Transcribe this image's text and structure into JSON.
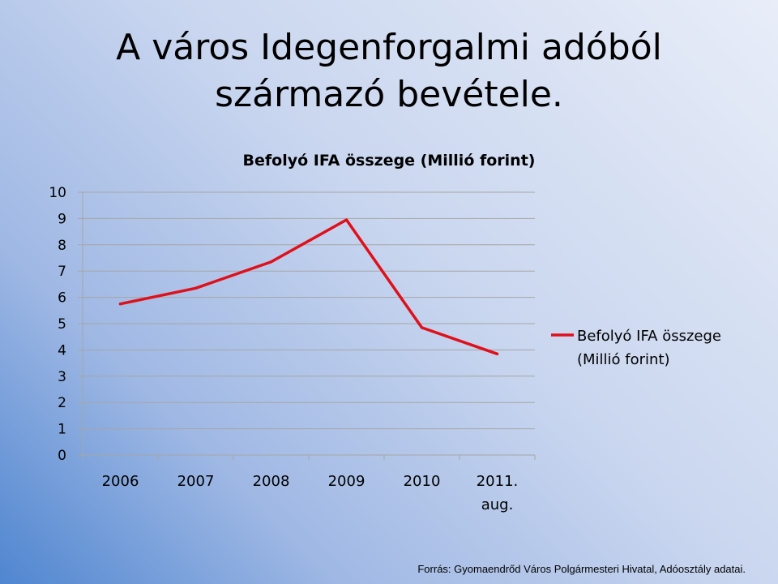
{
  "slide": {
    "title_line1": "A város Idegenforgalmi adóból",
    "title_line2": "származó bevétele.",
    "source": "Forrás: Gyomaendrőd Város Polgármesteri  Hivatal, Adóosztály adatai."
  },
  "chart_data": {
    "type": "line",
    "title": "Befolyó IFA összege (Millió forint)",
    "categories": [
      [
        "2006"
      ],
      [
        "2007"
      ],
      [
        "2008"
      ],
      [
        "2009"
      ],
      [
        "2010"
      ],
      [
        "2011.",
        "aug."
      ]
    ],
    "series": [
      {
        "name": [
          "Befolyó IFA összege",
          "(Millió forint)"
        ],
        "values": [
          5.75,
          6.35,
          7.35,
          8.95,
          4.85,
          3.85
        ],
        "color": "#e0101a"
      }
    ],
    "yticks": [
      "0",
      "1",
      "2",
      "3",
      "4",
      "5",
      "6",
      "7",
      "8",
      "9",
      "10"
    ],
    "ylim": [
      0,
      10
    ],
    "grid": true,
    "legend_position": "right",
    "gridline_color": "#a6a6a6"
  }
}
